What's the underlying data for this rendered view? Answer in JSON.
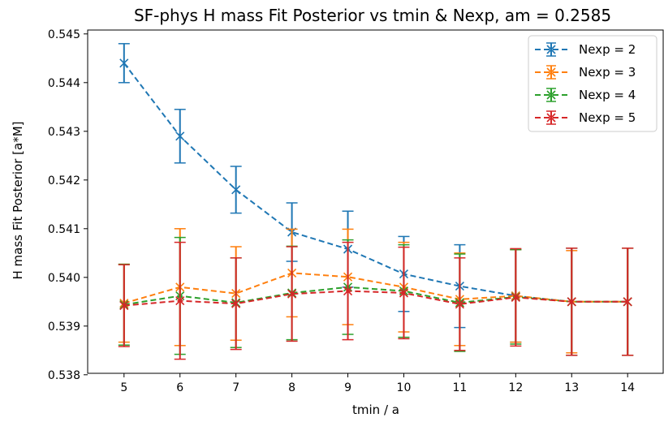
{
  "chart_data": {
    "type": "line",
    "title": "SF-phys H mass Fit Posterior vs tmin & Nexp, am = 0.2585",
    "xlabel": "tmin / a",
    "ylabel": "H mass Fit Posterior [a*M]",
    "x_ticks": [
      "5",
      "6",
      "7",
      "8",
      "9",
      "10",
      "11",
      "12",
      "13",
      "14"
    ],
    "y_ticks": [
      "0.538",
      "0.539",
      "0.540",
      "0.541",
      "0.542",
      "0.543",
      "0.544",
      "0.545"
    ],
    "xlim": [
      4.35,
      14.65
    ],
    "ylim": [
      0.53803,
      0.54508
    ],
    "legend_position": "top-right",
    "line_style": "dashed",
    "marker": "x",
    "series": [
      {
        "name": "Nexp = 2",
        "color": "#1f77b4",
        "x": [
          5,
          6,
          7,
          8,
          9,
          10,
          11,
          12,
          13,
          14
        ],
        "y": [
          0.5444,
          0.5429,
          0.5418,
          0.54093,
          0.54058,
          0.54007,
          0.53982,
          0.53962,
          0.5395,
          0.5395
        ],
        "yerr": [
          0.0004,
          0.00055,
          0.00048,
          0.0006,
          0.00078,
          0.00077,
          0.00085,
          0.00095,
          0.0011,
          0.0011
        ]
      },
      {
        "name": "Nexp = 3",
        "color": "#ff7f0e",
        "x": [
          5,
          6,
          7,
          8,
          9,
          10,
          11,
          12,
          13,
          14
        ],
        "y": [
          0.53947,
          0.5398,
          0.53967,
          0.54009,
          0.54001,
          0.5398,
          0.53955,
          0.53962,
          0.5395,
          0.5395
        ],
        "yerr": [
          0.0008,
          0.0012,
          0.00096,
          0.0009,
          0.00098,
          0.00092,
          0.00095,
          0.00095,
          0.00105,
          0.0011
        ]
      },
      {
        "name": "Nexp = 4",
        "color": "#2ca02c",
        "x": [
          5,
          6,
          7,
          8,
          9,
          10,
          11,
          12,
          13,
          14
        ],
        "y": [
          0.53944,
          0.53962,
          0.53948,
          0.53968,
          0.5398,
          0.53972,
          0.53948,
          0.5396,
          0.5395,
          0.5395
        ],
        "yerr": [
          0.00083,
          0.0012,
          0.00092,
          0.00096,
          0.00097,
          0.00095,
          0.001,
          0.00097,
          0.0011,
          0.0011
        ]
      },
      {
        "name": "Nexp = 5",
        "color": "#d62728",
        "x": [
          5,
          6,
          7,
          8,
          9,
          10,
          11,
          12,
          13,
          14
        ],
        "y": [
          0.53942,
          0.53952,
          0.53946,
          0.53966,
          0.53972,
          0.53968,
          0.53945,
          0.53959,
          0.5395,
          0.5395
        ],
        "yerr": [
          0.00084,
          0.0012,
          0.00094,
          0.00097,
          0.001,
          0.00094,
          0.00095,
          0.001,
          0.0011,
          0.0011
        ]
      }
    ]
  }
}
